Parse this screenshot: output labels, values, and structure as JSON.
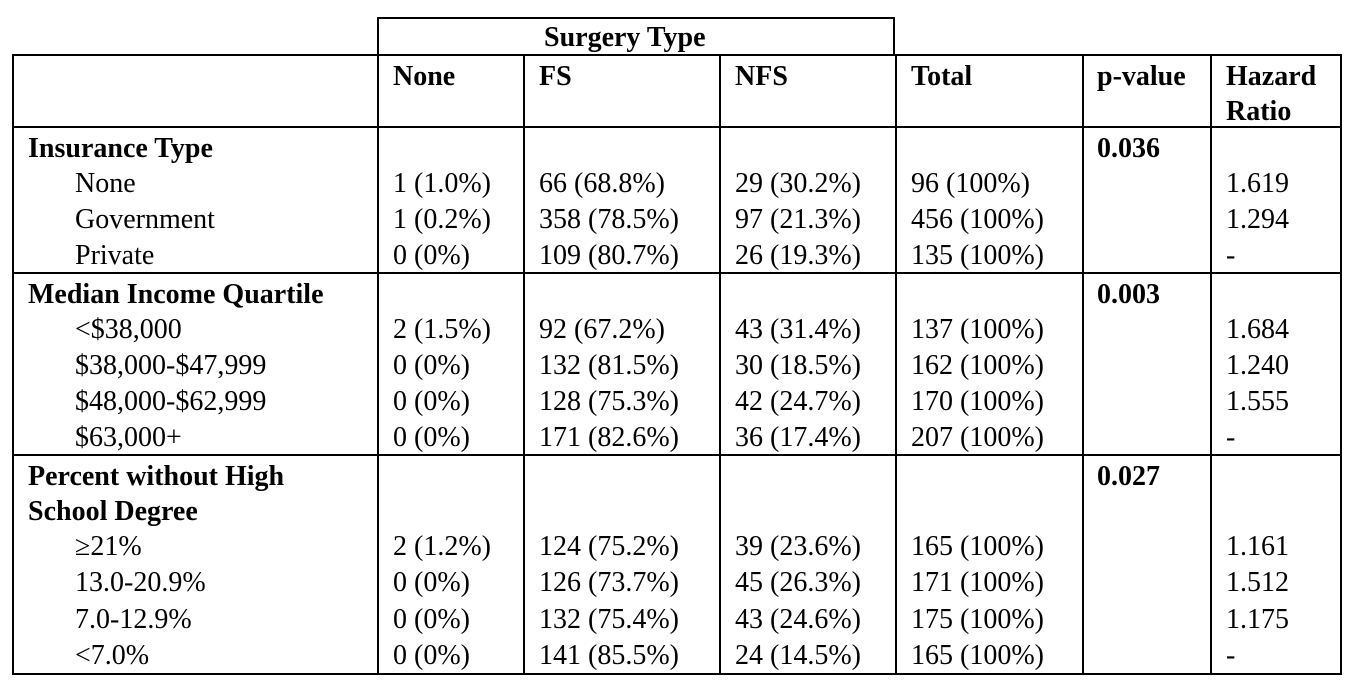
{
  "header": {
    "group_label": "Surgery Type",
    "columns": [
      "None",
      "FS",
      "NFS",
      "Total",
      "p-value",
      "Hazard",
      "Ratio"
    ]
  },
  "sections": [
    {
      "title": [
        "Insurance Type"
      ],
      "p_value": "0.036",
      "rows": [
        {
          "label": "None",
          "none": "1 (1.0%)",
          "fs": "66 (68.8%)",
          "nfs": "29 (30.2%)",
          "total": "96 (100%)",
          "hr": "1.619"
        },
        {
          "label": "Government",
          "none": "1 (0.2%)",
          "fs": "358 (78.5%)",
          "nfs": "97 (21.3%)",
          "total": "456 (100%)",
          "hr": "1.294"
        },
        {
          "label": "Private",
          "none": "0 (0%)",
          "fs": "109 (80.7%)",
          "nfs": "26 (19.3%)",
          "total": "135 (100%)",
          "hr": "-"
        }
      ]
    },
    {
      "title": [
        "Median Income Quartile"
      ],
      "p_value": "0.003",
      "rows": [
        {
          "label": "<$38,000",
          "none": "2 (1.5%)",
          "fs": "92 (67.2%)",
          "nfs": "43 (31.4%)",
          "total": "137 (100%)",
          "hr": "1.684"
        },
        {
          "label": "$38,000-$47,999",
          "none": "0 (0%)",
          "fs": "132 (81.5%)",
          "nfs": "30 (18.5%)",
          "total": "162 (100%)",
          "hr": "1.240"
        },
        {
          "label": "$48,000-$62,999",
          "none": "0 (0%)",
          "fs": "128 (75.3%)",
          "nfs": "42 (24.7%)",
          "total": "170 (100%)",
          "hr": "1.555"
        },
        {
          "label": "$63,000+",
          "none": "0 (0%)",
          "fs": "171 (82.6%)",
          "nfs": "36 (17.4%)",
          "total": "207 (100%)",
          "hr": "-"
        }
      ]
    },
    {
      "title": [
        "Percent without High",
        "School Degree"
      ],
      "p_value": "0.027",
      "rows": [
        {
          "label": "≥21%",
          "none": "2 (1.2%)",
          "fs": "124 (75.2%)",
          "nfs": "39 (23.6%)",
          "total": "165 (100%)",
          "hr": "1.161"
        },
        {
          "label": "13.0-20.9%",
          "none": "0 (0%)",
          "fs": "126 (73.7%)",
          "nfs": "45 (26.3%)",
          "total": "171 (100%)",
          "hr": "1.512"
        },
        {
          "label": "7.0-12.9%",
          "none": "0 (0%)",
          "fs": "132 (75.4%)",
          "nfs": "43 (24.6%)",
          "total": "175 (100%)",
          "hr": "1.175"
        },
        {
          "label": "<7.0%",
          "none": "0 (0%)",
          "fs": "141 (85.5%)",
          "nfs": "24 (14.5%)",
          "total": "165 (100%)",
          "hr": "-"
        }
      ]
    }
  ]
}
